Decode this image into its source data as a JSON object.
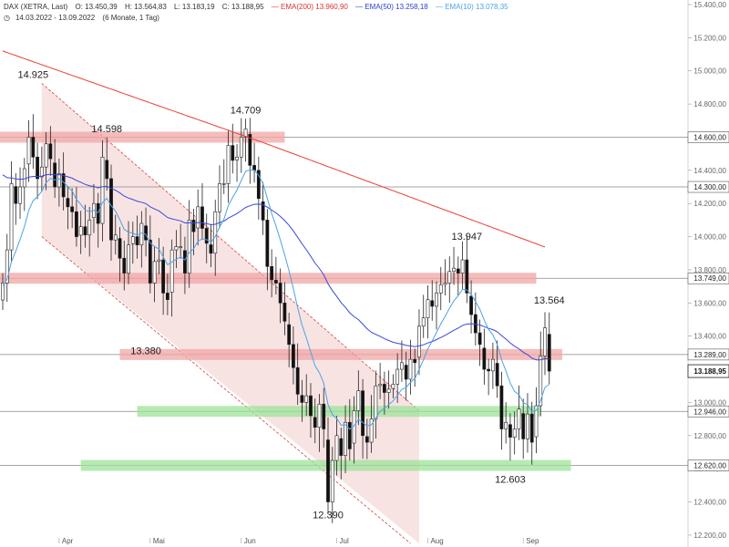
{
  "header": {
    "symbol_line": "DAX (XETRA, Last)",
    "ohlc": {
      "o": "O: 13.450,39",
      "h": "H: 13.564,83",
      "l": "L: 13.183,19",
      "c": "C: 13.188,95"
    },
    "ema200": "EMA(200)",
    "ema200_val": "13.960,90",
    "ema50": "EMA(50)",
    "ema50_val": "13.258,18",
    "ema10": "EMA(10)",
    "ema10_val": "13.078,35",
    "range": "14.03.2022 - 13.09.2022",
    "period": "(6 Monate, 1 Tag)"
  },
  "colors": {
    "up": "#ffffff",
    "down": "#111111",
    "ema200": "#e8413a",
    "ema50": "#3848d8",
    "ema10": "#4aa3e8",
    "resistance": "#f2a6a6",
    "support": "#9de39a",
    "channel": "#f6dcdc"
  },
  "chart_data": {
    "type": "candlestick",
    "ylim": [
      12150,
      15400
    ],
    "y_ticks": [
      "15.400,00",
      "15.200,00",
      "15.000,00",
      "14.800,00",
      "14.600,00",
      "14.400,00",
      "14.200,00",
      "14.000,00",
      "13.800,00",
      "13.600,00",
      "13.400,00",
      "13.200,00",
      "13.000,00",
      "12.800,00",
      "12.600,00",
      "12.400,00",
      "12.200,00"
    ],
    "y_tick_values": [
      15400,
      15200,
      15000,
      14800,
      14600,
      14400,
      14200,
      14000,
      13800,
      13600,
      13400,
      13200,
      13000,
      12800,
      12600,
      12400,
      12200
    ],
    "x_labels": [
      {
        "label": "Apr",
        "idx": 13
      },
      {
        "label": "Mai",
        "idx": 34
      },
      {
        "label": "Jun",
        "idx": 55
      },
      {
        "label": "Jul",
        "idx": 77
      },
      {
        "label": "Aug",
        "idx": 98
      },
      {
        "label": "Sep",
        "idx": 120
      }
    ],
    "levels": [
      {
        "label": "14.600,00",
        "value": 14600
      },
      {
        "label": "14.300,00",
        "value": 14300
      },
      {
        "label": "13.749,00",
        "value": 13749
      },
      {
        "label": "13.289,00",
        "value": 13289
      },
      {
        "label": "12.946,00",
        "value": 12946
      },
      {
        "label": "12.620,00",
        "value": 12620
      }
    ],
    "last_price": {
      "label": "13.188,95",
      "value": 13189
    },
    "annotations": [
      {
        "text": "14.925",
        "idx": 7,
        "value": 14925,
        "pos": "above"
      },
      {
        "text": "14.598",
        "idx": 24,
        "value": 14598,
        "pos": "above"
      },
      {
        "text": "14.709",
        "idx": 56,
        "value": 14709,
        "pos": "above"
      },
      {
        "text": "13.380",
        "idx": 33,
        "value": 13380,
        "pos": "below"
      },
      {
        "text": "13.947",
        "idx": 107,
        "value": 13947,
        "pos": "above"
      },
      {
        "text": "13.564",
        "idx": 126,
        "value": 13564,
        "pos": "above"
      },
      {
        "text": "12.390",
        "idx": 75,
        "value": 12390,
        "pos": "below"
      },
      {
        "text": "12.603",
        "idx": 117,
        "value": 12603,
        "pos": "below"
      }
    ],
    "closes": [
      13720,
      13920,
      14320,
      14200,
      14300,
      14410,
      14600,
      14480,
      14350,
      14420,
      14560,
      14470,
      14300,
      14380,
      14240,
      14180,
      14150,
      14000,
      14060,
      14010,
      14100,
      14200,
      14080,
      14480,
      14350,
      13980,
      14010,
      13870,
      13780,
      13950,
      14000,
      13950,
      14080,
      13980,
      13720,
      13850,
      13860,
      13660,
      13620,
      13920,
      13940,
      13940,
      13780,
      14100,
      14030,
      14180,
      14050,
      13960,
      13900,
      14150,
      14320,
      14320,
      14550,
      14460,
      14480,
      14600,
      14650,
      14430,
      14400,
      14230,
      14100,
      13820,
      13740,
      13720,
      13600,
      13490,
      13350,
      13210,
      13050,
      13000,
      13040,
      12920,
      12850,
      12990,
      12840,
      12400,
      12650,
      12800,
      12680,
      12880,
      12720,
      12950,
      13070,
      12800,
      12760,
      12900,
      13100,
      13110,
      13060,
      13080,
      13110,
      13200,
      13240,
      13140,
      13260,
      13240,
      13460,
      13510,
      13620,
      13580,
      13660,
      13710,
      13720,
      13790,
      13810,
      13780,
      13860,
      13660,
      13530,
      13420,
      13350,
      13200,
      13190,
      13260,
      13100,
      12840,
      12880,
      12790,
      12840,
      12960,
      12780,
      12930,
      12760,
      12980,
      13280,
      13450,
      13189
    ],
    "series": [
      {
        "name": "EMA(200)",
        "values_note": "EMA(200)"
      },
      {
        "name": "EMA(50)"
      },
      {
        "name": "EMA(10)"
      }
    ]
  }
}
